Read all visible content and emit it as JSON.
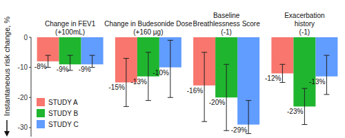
{
  "chart_data": {
    "type": "bar",
    "categories": [
      "Change in FEV1\n(+100mL)",
      "Change in Budesonide Dose\n(+160 µg)",
      "Baseline\nBreathlessness Score\n(-1)",
      "Exacerbation\nhistory\n(-1)"
    ],
    "y_label": "Instantaneous risk change, %",
    "series": [
      {
        "name": "STUDY A",
        "color": "#f8766d",
        "values": [
          -8,
          -15,
          -16,
          -12
        ],
        "value_labels": [
          "-8%",
          "-15%",
          "-16%",
          "-12%"
        ],
        "ci_upper": [
          -6,
          -7,
          -5,
          -9
        ],
        "ci_lower": [
          -10,
          -23,
          -28,
          -15
        ]
      },
      {
        "name": "STUDY B",
        "color": "#1fb52f",
        "values": [
          -9,
          -13,
          -20,
          -23
        ],
        "value_labels": [
          "-9%",
          "-13%",
          "-20%",
          "-23%"
        ],
        "ci_upper": [
          -6,
          -5,
          -9,
          -17
        ],
        "ci_lower": [
          -11,
          -21,
          -31,
          -29
        ]
      },
      {
        "name": "STUDY C",
        "color": "#619cff",
        "values": [
          -9,
          -10,
          -29,
          -13
        ],
        "value_labels": [
          "-9%",
          "-10%",
          "-29%",
          "-13%"
        ],
        "ci_upper": [
          -6,
          -1,
          -21,
          -6
        ],
        "ci_lower": [
          -10,
          -20,
          -32,
          -19
        ]
      }
    ],
    "ylim": [
      -33,
      0
    ],
    "yticks": [
      0,
      -10,
      -20,
      -30
    ],
    "grid": false,
    "legend": "lower left",
    "data_labels": true
  }
}
